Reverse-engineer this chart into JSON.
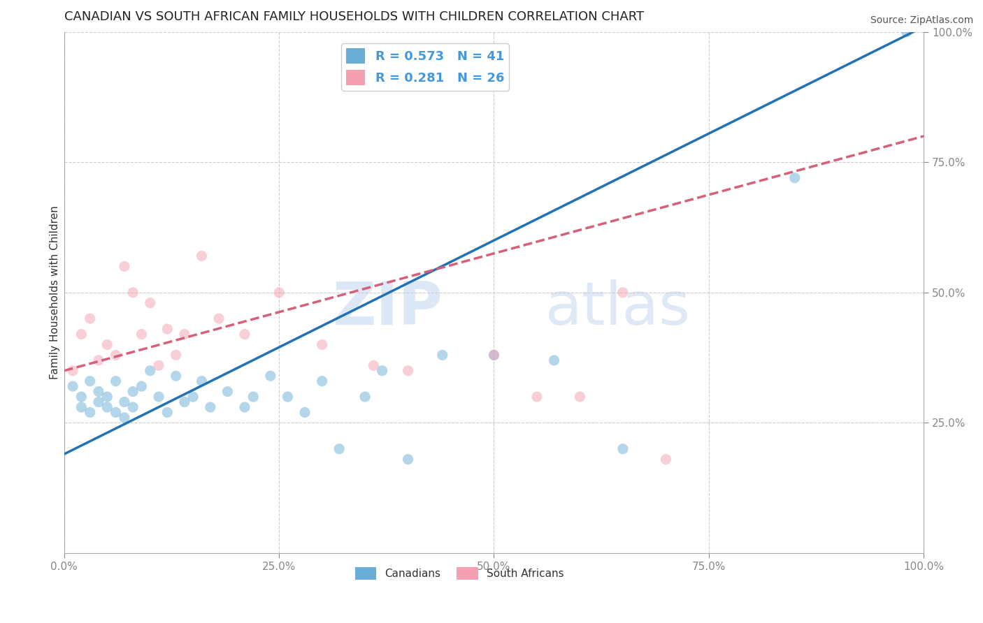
{
  "title": "CANADIAN VS SOUTH AFRICAN FAMILY HOUSEHOLDS WITH CHILDREN CORRELATION CHART",
  "source": "Source: ZipAtlas.com",
  "ylabel": "Family Households with Children",
  "xlabel": "",
  "xlim": [
    0,
    1
  ],
  "ylim": [
    0,
    1
  ],
  "xticks": [
    0,
    0.25,
    0.5,
    0.75,
    1.0
  ],
  "yticks": [
    0.25,
    0.5,
    0.75,
    1.0
  ],
  "xticklabels": [
    "0.0%",
    "25.0%",
    "50.0%",
    "75.0%",
    "100.0%"
  ],
  "yticklabels": [
    "25.0%",
    "50.0%",
    "75.0%",
    "100.0%"
  ],
  "canadian_color": "#6aaed6",
  "sa_color": "#f4a0b0",
  "canadian_line_color": "#2171b5",
  "sa_line_color": "#d4607a",
  "legend_R_canadian": "R = 0.573",
  "legend_N_canadian": "N = 41",
  "legend_R_sa": "R = 0.281",
  "legend_N_sa": "N = 26",
  "legend_label_canadian": "Canadians",
  "legend_label_sa": "South Africans",
  "watermark_zip": "ZIP",
  "watermark_atlas": "atlas",
  "canadian_x": [
    0.01,
    0.02,
    0.02,
    0.03,
    0.03,
    0.04,
    0.04,
    0.05,
    0.05,
    0.06,
    0.06,
    0.07,
    0.07,
    0.08,
    0.08,
    0.09,
    0.1,
    0.11,
    0.12,
    0.13,
    0.14,
    0.15,
    0.16,
    0.17,
    0.19,
    0.21,
    0.22,
    0.24,
    0.26,
    0.28,
    0.3,
    0.32,
    0.35,
    0.37,
    0.4,
    0.44,
    0.5,
    0.57,
    0.65,
    0.85,
    0.98
  ],
  "canadian_y": [
    0.32,
    0.3,
    0.28,
    0.33,
    0.27,
    0.31,
    0.29,
    0.3,
    0.28,
    0.33,
    0.27,
    0.29,
    0.26,
    0.31,
    0.28,
    0.32,
    0.35,
    0.3,
    0.27,
    0.34,
    0.29,
    0.3,
    0.33,
    0.28,
    0.31,
    0.28,
    0.3,
    0.34,
    0.3,
    0.27,
    0.33,
    0.2,
    0.3,
    0.35,
    0.18,
    0.38,
    0.38,
    0.37,
    0.2,
    0.72,
    1.0
  ],
  "sa_x": [
    0.01,
    0.02,
    0.03,
    0.04,
    0.05,
    0.06,
    0.07,
    0.08,
    0.09,
    0.1,
    0.11,
    0.12,
    0.13,
    0.14,
    0.16,
    0.18,
    0.21,
    0.25,
    0.3,
    0.36,
    0.4,
    0.5,
    0.55,
    0.6,
    0.65,
    0.7
  ],
  "sa_y": [
    0.35,
    0.42,
    0.45,
    0.37,
    0.4,
    0.38,
    0.55,
    0.5,
    0.42,
    0.48,
    0.36,
    0.43,
    0.38,
    0.42,
    0.57,
    0.45,
    0.42,
    0.5,
    0.4,
    0.36,
    0.35,
    0.38,
    0.3,
    0.3,
    0.5,
    0.18
  ],
  "canadian_reg_intercept": 0.19,
  "canadian_reg_slope": 0.82,
  "sa_reg_intercept": 0.35,
  "sa_reg_slope": 0.45,
  "title_fontsize": 13,
  "label_fontsize": 11,
  "tick_fontsize": 11,
  "legend_fontsize": 13,
  "source_fontsize": 10,
  "marker_size": 120,
  "marker_alpha": 0.5,
  "line_width": 2.5,
  "background_color": "#ffffff",
  "grid_color": "#cccccc",
  "tick_color": "#4499dd",
  "title_color": "#222222"
}
